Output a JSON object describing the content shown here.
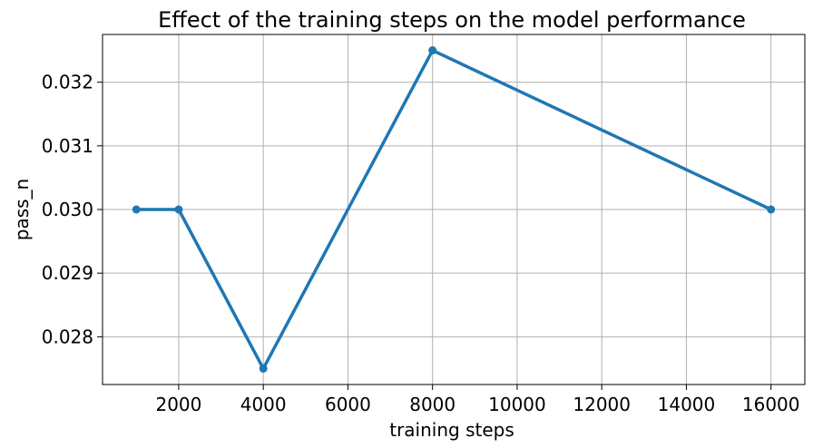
{
  "chart_data": {
    "type": "line",
    "title": "Effect of the training steps on the model performance",
    "xlabel": "training steps",
    "ylabel": "pass_n",
    "x": [
      1000,
      2000,
      4000,
      8000,
      16000
    ],
    "series": [
      {
        "values": [
          0.03,
          0.03,
          0.0275,
          0.0325,
          0.03
        ],
        "color": "#1f77b4"
      }
    ],
    "xlim": [
      200,
      16800
    ],
    "ylim": [
      0.02725,
      0.02775,
      0.03275
    ],
    "xticks": [
      2000,
      4000,
      6000,
      8000,
      10000,
      12000,
      14000,
      16000
    ],
    "xtick_labels": [
      "2000",
      "4000",
      "6000",
      "8000",
      "10000",
      "12000",
      "14000",
      "16000"
    ],
    "yticks": [
      0.028,
      0.029,
      0.03,
      0.031,
      0.032
    ],
    "ytick_labels": [
      "0.028",
      "0.029",
      "0.030",
      "0.031",
      "0.032"
    ],
    "grid": true,
    "markers": true
  }
}
